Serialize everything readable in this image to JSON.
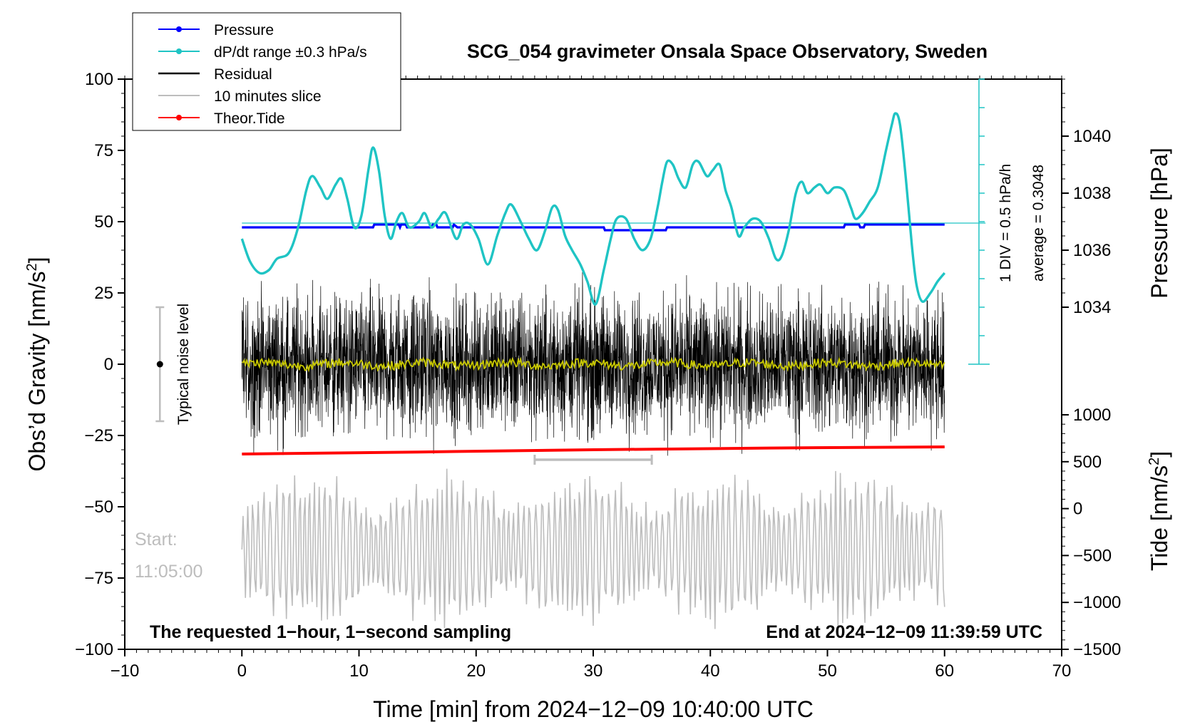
{
  "chart_data": {
    "type": "line",
    "title": "SCG_054 gravimeter Onsala Space Observatory, Sweden",
    "xlabel": "Time [min] from 2024−12−09 10:40:00 UTC",
    "ylabel_left_text": "Obs’d Gravity [nm/s",
    "ylabel_left_sup": "2",
    "ylabel_left_end": "]",
    "ylabel_right_pressure": "Pressure [hPa]",
    "ylabel_right_tide_text": "Tide [nm/s",
    "ylabel_right_tide_sup": "2",
    "ylabel_right_tide_end": "]",
    "xlim": [
      -10,
      70
    ],
    "ylim": [
      -100,
      100
    ],
    "pressure_lim": [
      1030,
      1050
    ],
    "tide_lim": [
      -1500,
      1000
    ],
    "x_ticks": [
      "−10",
      "0",
      "10",
      "20",
      "30",
      "40",
      "50",
      "60",
      "70"
    ],
    "x_tick_values": [
      -10,
      0,
      10,
      20,
      30,
      40,
      50,
      60,
      70
    ],
    "y_ticks": [
      "100",
      "75",
      "50",
      "25",
      "0",
      "−25",
      "−50",
      "−75",
      "−100"
    ],
    "y_tick_values": [
      100,
      75,
      50,
      25,
      0,
      -25,
      -50,
      -75,
      -100
    ],
    "pressure_ticks": [
      "1040",
      "1038",
      "1036",
      "1034"
    ],
    "pressure_tick_values": [
      1040,
      1038,
      1036,
      1034
    ],
    "tide_ticks": [
      "1000",
      "500",
      "0",
      "−500",
      "−1000",
      "−1500"
    ],
    "tide_tick_values": [
      1000,
      500,
      0,
      -500,
      -1000,
      -1500
    ],
    "legend": [
      {
        "label": "Pressure",
        "color": "#0000ff",
        "marker": true
      },
      {
        "label": "dP/dt range ±0.3 hPa/s",
        "color": "#1fc4c4",
        "marker": true
      },
      {
        "label": "Residual",
        "color": "#000000",
        "marker": false
      },
      {
        "label": "10 minutes slice",
        "color": "#bdbdbd",
        "marker": false
      },
      {
        "label": "Theor.Tide",
        "color": "#ff0000",
        "marker": true
      }
    ],
    "legend_position": "top-left",
    "annotations": {
      "noise_label": "Typical noise level",
      "start_label": "Start:",
      "start_time": "11:05:00",
      "bottom_left": "The requested 1−hour, 1−second sampling",
      "bottom_right": "End at 2024−12−09 11:39:59 UTC",
      "scale_div": "1 DIV = 0.5 hPa/h",
      "scale_avg": "average = 0.3048"
    },
    "noise_level": {
      "x": -7,
      "center": 0,
      "range": [
        -20,
        20
      ]
    },
    "slice_window": [
      25,
      35
    ],
    "series": [
      {
        "name": "Pressure",
        "color": "#0000ff",
        "axis": "pressure",
        "points": [
          [
            0,
            1036.8
          ],
          [
            11.2,
            1036.8
          ],
          [
            11.3,
            1036.9
          ],
          [
            13.4,
            1036.9
          ],
          [
            13.5,
            1036.8
          ],
          [
            13.6,
            1036.9
          ],
          [
            14.0,
            1036.9
          ],
          [
            14.1,
            1036.8
          ],
          [
            16.2,
            1036.8
          ],
          [
            16.3,
            1036.9
          ],
          [
            16.6,
            1036.9
          ],
          [
            16.7,
            1036.8
          ],
          [
            18.0,
            1036.8
          ],
          [
            18.1,
            1036.9
          ],
          [
            18.4,
            1036.8
          ],
          [
            30.9,
            1036.8
          ],
          [
            31.0,
            1036.7
          ],
          [
            36.2,
            1036.7
          ],
          [
            36.3,
            1036.8
          ],
          [
            51.4,
            1036.8
          ],
          [
            51.5,
            1036.9
          ],
          [
            52.7,
            1036.9
          ],
          [
            52.8,
            1036.8
          ],
          [
            53.1,
            1036.8
          ],
          [
            53.2,
            1036.9
          ],
          [
            60,
            1036.9
          ]
        ]
      },
      {
        "name": "dP/dt range ±0.3 hPa/s",
        "color": "#1fc4c4",
        "axis": "gravity",
        "points": [
          [
            0,
            44
          ],
          [
            0.7,
            36
          ],
          [
            1.5,
            32
          ],
          [
            2.3,
            33
          ],
          [
            3.0,
            37
          ],
          [
            4.0,
            39
          ],
          [
            4.8,
            48
          ],
          [
            5.5,
            61
          ],
          [
            6.0,
            66
          ],
          [
            6.7,
            62
          ],
          [
            7.3,
            58
          ],
          [
            8.0,
            63
          ],
          [
            8.5,
            65
          ],
          [
            9.0,
            58
          ],
          [
            9.6,
            48
          ],
          [
            10.2,
            52
          ],
          [
            10.8,
            68
          ],
          [
            11.2,
            76
          ],
          [
            11.7,
            68
          ],
          [
            12.2,
            52
          ],
          [
            12.7,
            44
          ],
          [
            13.2,
            50
          ],
          [
            13.7,
            53
          ],
          [
            14.3,
            48
          ],
          [
            15.1,
            50
          ],
          [
            15.6,
            53
          ],
          [
            16.2,
            48
          ],
          [
            16.8,
            51
          ],
          [
            17.4,
            53
          ],
          [
            18.3,
            44
          ],
          [
            18.9,
            49
          ],
          [
            19.5,
            49
          ],
          [
            20.2,
            44
          ],
          [
            21.0,
            35
          ],
          [
            21.8,
            45
          ],
          [
            22.5,
            53
          ],
          [
            23.0,
            56
          ],
          [
            23.8,
            50
          ],
          [
            24.5,
            44
          ],
          [
            25.2,
            40
          ],
          [
            25.9,
            47
          ],
          [
            26.5,
            55
          ],
          [
            27.0,
            54
          ],
          [
            27.6,
            45
          ],
          [
            28.2,
            40
          ],
          [
            28.9,
            35
          ],
          [
            29.5,
            29
          ],
          [
            30.2,
            21
          ],
          [
            30.9,
            33
          ],
          [
            31.5,
            44
          ],
          [
            32.0,
            51
          ],
          [
            32.8,
            51
          ],
          [
            33.5,
            44
          ],
          [
            34.2,
            40
          ],
          [
            34.9,
            44
          ],
          [
            35.5,
            55
          ],
          [
            35.9,
            64
          ],
          [
            36.3,
            71
          ],
          [
            36.8,
            70
          ],
          [
            37.3,
            65
          ],
          [
            37.9,
            62
          ],
          [
            38.5,
            70
          ],
          [
            39.0,
            71
          ],
          [
            39.7,
            66
          ],
          [
            40.2,
            68
          ],
          [
            40.8,
            70
          ],
          [
            41.3,
            61
          ],
          [
            41.8,
            55
          ],
          [
            42.4,
            45
          ],
          [
            42.9,
            48
          ],
          [
            43.6,
            51
          ],
          [
            44.3,
            50
          ],
          [
            45.0,
            44
          ],
          [
            45.6,
            37
          ],
          [
            46.1,
            38
          ],
          [
            46.7,
            47
          ],
          [
            47.3,
            60
          ],
          [
            47.8,
            64
          ],
          [
            48.3,
            60
          ],
          [
            48.9,
            62
          ],
          [
            49.4,
            63
          ],
          [
            50.0,
            60
          ],
          [
            50.6,
            62
          ],
          [
            51.4,
            61
          ],
          [
            52.0,
            55
          ],
          [
            52.4,
            51
          ],
          [
            53.0,
            53
          ],
          [
            53.6,
            57
          ],
          [
            54.3,
            62
          ],
          [
            55.0,
            75
          ],
          [
            55.5,
            84
          ],
          [
            55.8,
            88
          ],
          [
            56.2,
            84
          ],
          [
            56.7,
            65
          ],
          [
            57.2,
            42
          ],
          [
            57.6,
            28
          ],
          [
            58.1,
            22
          ],
          [
            58.8,
            25
          ],
          [
            59.4,
            29
          ],
          [
            60,
            32
          ]
        ]
      },
      {
        "name": "dP/dt average",
        "color": "#1fc4c4",
        "axis": "gravity",
        "points": [
          [
            0,
            49.5
          ],
          [
            63.5,
            49.5
          ]
        ]
      },
      {
        "name": "Theor.Tide",
        "color": "#ff0000",
        "axis": "gravity",
        "points": [
          [
            0,
            -31.5
          ],
          [
            15,
            -30.8
          ],
          [
            30,
            -30.0
          ],
          [
            45,
            -29.4
          ],
          [
            60,
            -29.0
          ]
        ]
      }
    ],
    "residual": {
      "color": "#000000",
      "smooth_color": "#c8c800",
      "x_range": [
        0,
        60
      ],
      "amplitude": 26
    },
    "slice": {
      "color": "#bdbdbd",
      "x_range": [
        0,
        60
      ],
      "center": -65,
      "amplitude": 29
    }
  }
}
